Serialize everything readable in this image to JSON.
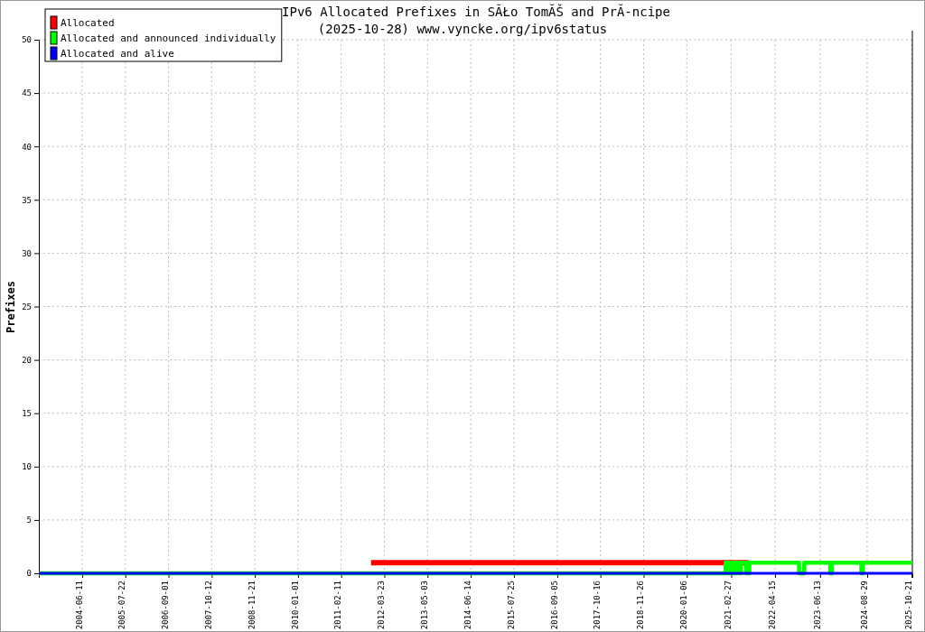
{
  "chart_data": {
    "type": "step",
    "title": "IPv6 Allocated Prefixes in SĂŁo TomĂŠ and PrĂ-ncipe",
    "subtitle": "(2025-10-28) www.vyncke.org/ipv6status",
    "ylabel": "Prefixes",
    "xlim": [
      "2003-04-30",
      "2025-10-28"
    ],
    "xticks": [
      {
        "value": "2004-06-11",
        "label": "2004-06-11"
      },
      {
        "value": "2005-07-22",
        "label": "2005-07-22"
      },
      {
        "value": "2006-09-01",
        "label": "2006-09-01"
      },
      {
        "value": "2007-10-12",
        "label": "2007-10-12"
      },
      {
        "value": "2008-11-21",
        "label": "2008-11-21"
      },
      {
        "value": "2010-01-01",
        "label": "2010-01-01"
      },
      {
        "value": "2011-02-11",
        "label": "2011-02-11"
      },
      {
        "value": "2012-03-23",
        "label": "2012-03-23"
      },
      {
        "value": "2013-05-03",
        "label": "2013-05-03"
      },
      {
        "value": "2014-06-14",
        "label": "2014-06-14"
      },
      {
        "value": "2015-07-25",
        "label": "2015-07-25"
      },
      {
        "value": "2016-09-05",
        "label": "2016-09-05"
      },
      {
        "value": "2017-10-16",
        "label": "2017-10-16"
      },
      {
        "value": "2018-11-26",
        "label": "2018-11-26"
      },
      {
        "value": "2020-01-06",
        "label": "2020-01-06"
      },
      {
        "value": "2021-02-27",
        "label": "2021-02-27"
      },
      {
        "value": "2022-04-15",
        "label": "2022-04-15"
      },
      {
        "value": "2023-06-13",
        "label": "2023-06-13"
      },
      {
        "value": "2024-08-29",
        "label": "2024-08-29"
      },
      {
        "value": "2025-10-21",
        "label": "2025-10-21"
      }
    ],
    "ylim": [
      0,
      50
    ],
    "yticks": [
      0,
      5,
      10,
      15,
      20,
      25,
      30,
      35,
      40,
      45,
      50
    ],
    "grid": true,
    "legend": "top left",
    "line_style": "solid",
    "series": [
      {
        "name": "Allocated",
        "color": "#ff0000",
        "x": [
          "2011-11-19",
          "2021-08-10"
        ],
        "values": [
          1,
          1
        ]
      },
      {
        "name": "Allocated and announced individually",
        "color": "#00ff00",
        "x": [
          "2003-04-30",
          "2021-01-04",
          "2021-01-27",
          "2021-02-05",
          "2021-02-16",
          "2021-02-24",
          "2021-03-16",
          "2021-03-25",
          "2021-04-09",
          "2021-04-14",
          "2021-05-13",
          "2021-05-30",
          "2021-07-18",
          "2021-08-16",
          "2022-11-27",
          "2023-01-15",
          "2023-09-16",
          "2023-09-30",
          "2024-07-05",
          "2024-07-20",
          "2025-10-28"
        ],
        "values": [
          0,
          1,
          0,
          1,
          0,
          1,
          0,
          1,
          0,
          1,
          0,
          1,
          0,
          1,
          0,
          1,
          0,
          1,
          0,
          1,
          1
        ]
      },
      {
        "name": "Allocated and alive",
        "color": "#0000ff",
        "x": [
          "2003-04-30",
          "2025-10-28"
        ],
        "values": [
          0,
          0
        ]
      }
    ]
  }
}
